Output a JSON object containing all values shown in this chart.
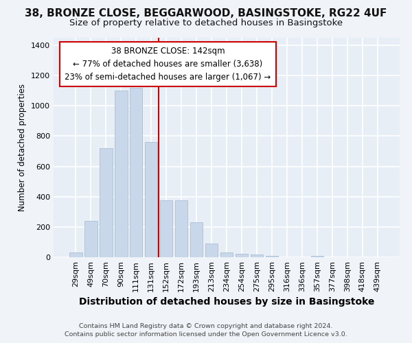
{
  "title_line1": "38, BRONZE CLOSE, BEGGARWOOD, BASINGSTOKE, RG22 4UF",
  "title_line2": "Size of property relative to detached houses in Basingstoke",
  "xlabel": "Distribution of detached houses by size in Basingstoke",
  "ylabel": "Number of detached properties",
  "categories": [
    "29sqm",
    "49sqm",
    "70sqm",
    "90sqm",
    "111sqm",
    "131sqm",
    "152sqm",
    "172sqm",
    "193sqm",
    "213sqm",
    "234sqm",
    "254sqm",
    "275sqm",
    "295sqm",
    "316sqm",
    "336sqm",
    "357sqm",
    "377sqm",
    "398sqm",
    "418sqm",
    "439sqm"
  ],
  "values": [
    30,
    240,
    720,
    1100,
    1120,
    760,
    375,
    375,
    230,
    90,
    30,
    22,
    18,
    10,
    0,
    0,
    10,
    0,
    0,
    0,
    0
  ],
  "bar_color": "#c8d8ea",
  "bar_edge_color": "#aabfd4",
  "vline_x": 5.5,
  "vline_color": "#cc0000",
  "annotation_line1": "38 BRONZE CLOSE: 142sqm",
  "annotation_line2": "← 77% of detached houses are smaller (3,638)",
  "annotation_line3": "23% of semi-detached houses are larger (1,067) →",
  "annotation_box_facecolor": "#ffffff",
  "annotation_box_edgecolor": "#cc0000",
  "ylim": [
    0,
    1450
  ],
  "yticks": [
    0,
    200,
    400,
    600,
    800,
    1000,
    1200,
    1400
  ],
  "footer_line1": "Contains HM Land Registry data © Crown copyright and database right 2024.",
  "footer_line2": "Contains public sector information licensed under the Open Government Licence v3.0.",
  "fig_facecolor": "#f0f4f8",
  "plot_facecolor": "#e8eef5",
  "grid_color": "#ffffff",
  "title1_fontsize": 11,
  "title2_fontsize": 9.5,
  "ylabel_fontsize": 8.5,
  "xlabel_fontsize": 10,
  "tick_fontsize": 8,
  "footer_fontsize": 6.8
}
